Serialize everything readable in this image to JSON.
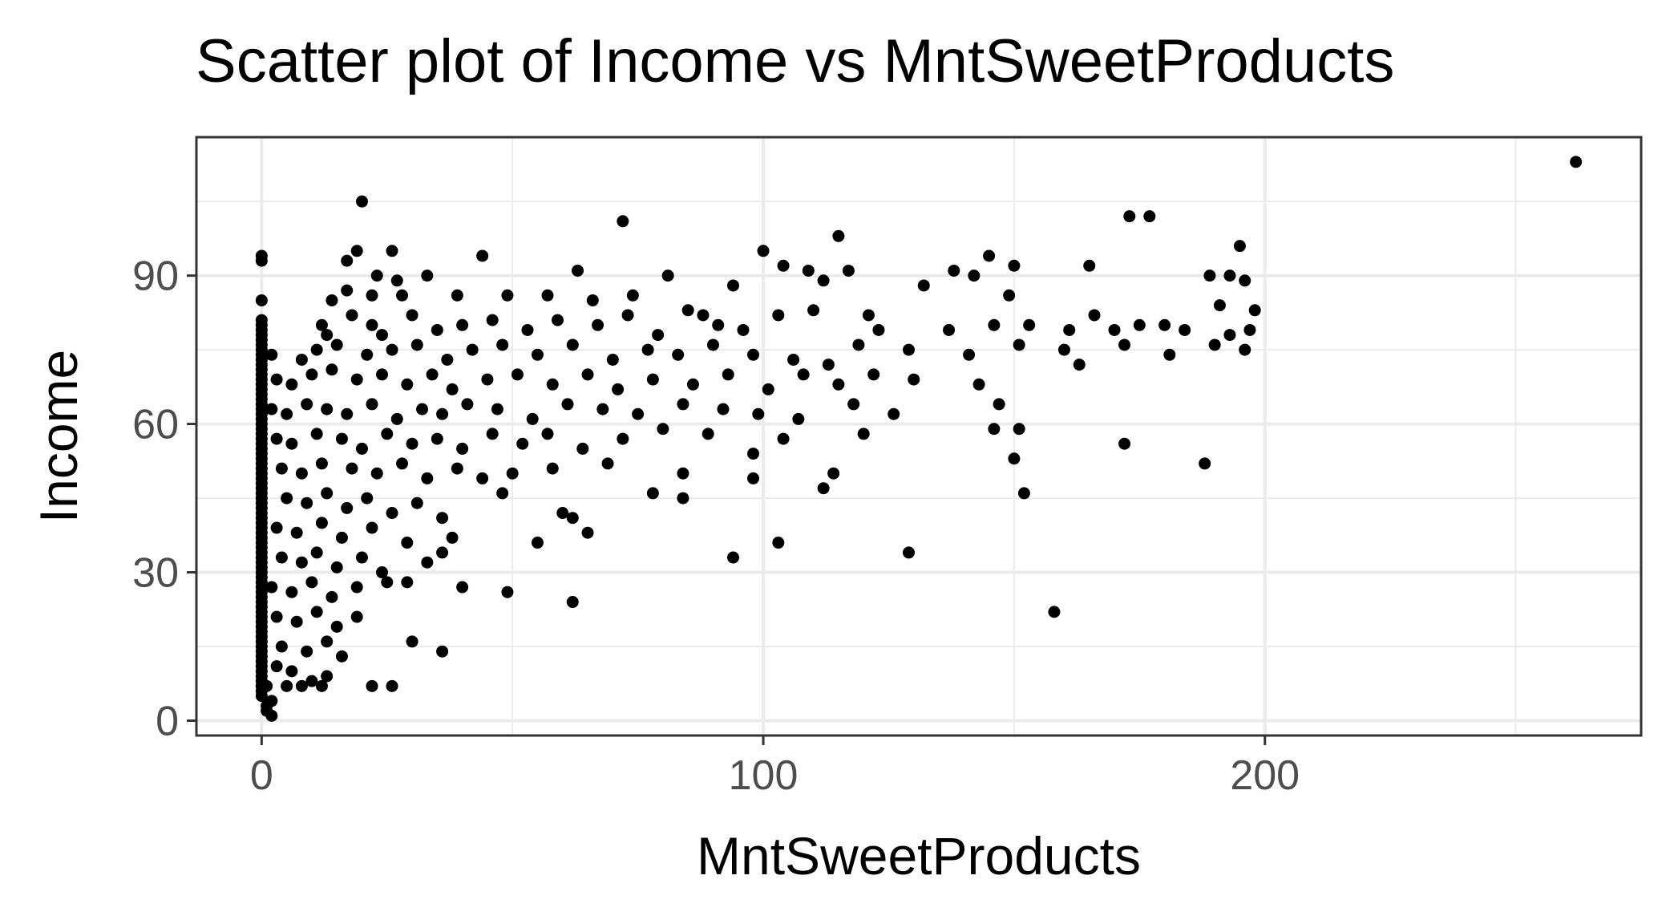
{
  "chart_data": {
    "type": "scatter",
    "title": "Scatter plot of Income vs MntSweetProducts",
    "xlabel": "MntSweetProducts",
    "ylabel": "Income",
    "xlim": [
      -13,
      275
    ],
    "ylim": [
      -3,
      118
    ],
    "x_ticks": [
      0,
      100,
      200
    ],
    "x_tick_labels": [
      "0",
      "100",
      "200"
    ],
    "y_ticks": [
      0,
      30,
      60,
      90
    ],
    "y_tick_labels": [
      "0",
      "30",
      "60",
      "90"
    ],
    "x_minor_gridlines": [
      50,
      150,
      250
    ],
    "y_minor_gridlines": [
      15,
      45,
      75,
      105
    ],
    "grid": true,
    "legend": "none",
    "point_color": "#000000",
    "series": [
      {
        "points": [
          [
            262,
            113
          ],
          [
            20,
            105
          ],
          [
            72,
            101
          ],
          [
            173,
            102
          ],
          [
            177,
            102
          ],
          [
            115,
            98
          ],
          [
            100,
            95
          ],
          [
            0,
            94
          ],
          [
            0,
            93
          ],
          [
            19,
            95
          ],
          [
            26,
            95
          ],
          [
            44,
            94
          ],
          [
            145,
            94
          ],
          [
            17,
            93
          ],
          [
            104,
            92
          ],
          [
            109,
            91
          ],
          [
            150,
            92
          ],
          [
            165,
            92
          ],
          [
            23,
            90
          ],
          [
            27,
            89
          ],
          [
            33,
            90
          ],
          [
            63,
            91
          ],
          [
            81,
            90
          ],
          [
            94,
            88
          ],
          [
            112,
            89
          ],
          [
            117,
            91
          ],
          [
            138,
            91
          ],
          [
            142,
            90
          ],
          [
            189,
            90
          ],
          [
            193,
            90
          ],
          [
            195,
            96
          ],
          [
            196,
            89
          ],
          [
            0,
            85
          ],
          [
            14,
            85
          ],
          [
            17,
            87
          ],
          [
            22,
            86
          ],
          [
            28,
            86
          ],
          [
            39,
            86
          ],
          [
            49,
            86
          ],
          [
            57,
            86
          ],
          [
            66,
            85
          ],
          [
            74,
            86
          ],
          [
            85,
            83
          ],
          [
            88,
            82
          ],
          [
            121,
            82
          ],
          [
            132,
            88
          ],
          [
            149,
            86
          ],
          [
            166,
            82
          ],
          [
            175,
            80
          ],
          [
            180,
            80
          ],
          [
            191,
            84
          ],
          [
            198,
            83
          ],
          [
            0,
            81
          ],
          [
            0,
            80
          ],
          [
            0,
            79
          ],
          [
            0,
            78
          ],
          [
            0,
            77
          ],
          [
            12,
            80
          ],
          [
            13,
            78
          ],
          [
            18,
            82
          ],
          [
            22,
            80
          ],
          [
            24,
            78
          ],
          [
            30,
            82
          ],
          [
            35,
            79
          ],
          [
            40,
            80
          ],
          [
            46,
            81
          ],
          [
            53,
            79
          ],
          [
            59,
            81
          ],
          [
            67,
            80
          ],
          [
            73,
            82
          ],
          [
            79,
            78
          ],
          [
            91,
            80
          ],
          [
            96,
            79
          ],
          [
            103,
            82
          ],
          [
            110,
            83
          ],
          [
            123,
            79
          ],
          [
            137,
            79
          ],
          [
            146,
            80
          ],
          [
            153,
            80
          ],
          [
            161,
            79
          ],
          [
            170,
            79
          ],
          [
            184,
            79
          ],
          [
            193,
            78
          ],
          [
            197,
            79
          ],
          [
            0,
            76
          ],
          [
            0,
            75
          ],
          [
            0,
            74
          ],
          [
            0,
            73
          ],
          [
            0,
            72
          ],
          [
            0,
            71
          ],
          [
            0,
            70
          ],
          [
            2,
            74
          ],
          [
            8,
            73
          ],
          [
            11,
            75
          ],
          [
            15,
            76
          ],
          [
            21,
            74
          ],
          [
            26,
            75
          ],
          [
            31,
            76
          ],
          [
            37,
            73
          ],
          [
            42,
            75
          ],
          [
            48,
            76
          ],
          [
            55,
            74
          ],
          [
            62,
            76
          ],
          [
            70,
            73
          ],
          [
            77,
            75
          ],
          [
            83,
            74
          ],
          [
            90,
            76
          ],
          [
            98,
            74
          ],
          [
            106,
            73
          ],
          [
            113,
            72
          ],
          [
            119,
            76
          ],
          [
            129,
            75
          ],
          [
            141,
            74
          ],
          [
            151,
            76
          ],
          [
            160,
            75
          ],
          [
            172,
            76
          ],
          [
            181,
            74
          ],
          [
            190,
            76
          ],
          [
            196,
            75
          ],
          [
            0,
            69
          ],
          [
            0,
            68
          ],
          [
            0,
            67
          ],
          [
            0,
            66
          ],
          [
            0,
            65
          ],
          [
            3,
            69
          ],
          [
            6,
            68
          ],
          [
            10,
            70
          ],
          [
            14,
            71
          ],
          [
            19,
            69
          ],
          [
            24,
            70
          ],
          [
            29,
            68
          ],
          [
            34,
            70
          ],
          [
            38,
            67
          ],
          [
            45,
            69
          ],
          [
            51,
            70
          ],
          [
            58,
            68
          ],
          [
            65,
            70
          ],
          [
            71,
            67
          ],
          [
            78,
            69
          ],
          [
            86,
            68
          ],
          [
            93,
            70
          ],
          [
            101,
            67
          ],
          [
            108,
            70
          ],
          [
            115,
            68
          ],
          [
            122,
            70
          ],
          [
            130,
            69
          ],
          [
            143,
            68
          ],
          [
            163,
            72
          ],
          [
            0,
            64
          ],
          [
            0,
            63
          ],
          [
            0,
            62
          ],
          [
            0,
            61
          ],
          [
            0,
            60
          ],
          [
            0,
            59
          ],
          [
            2,
            63
          ],
          [
            5,
            62
          ],
          [
            9,
            64
          ],
          [
            13,
            63
          ],
          [
            17,
            62
          ],
          [
            22,
            64
          ],
          [
            27,
            61
          ],
          [
            32,
            63
          ],
          [
            36,
            62
          ],
          [
            41,
            64
          ],
          [
            47,
            63
          ],
          [
            54,
            61
          ],
          [
            61,
            64
          ],
          [
            68,
            63
          ],
          [
            75,
            62
          ],
          [
            84,
            64
          ],
          [
            92,
            63
          ],
          [
            99,
            62
          ],
          [
            107,
            61
          ],
          [
            118,
            64
          ],
          [
            126,
            62
          ],
          [
            147,
            64
          ],
          [
            0,
            58
          ],
          [
            0,
            57
          ],
          [
            0,
            56
          ],
          [
            0,
            55
          ],
          [
            0,
            54
          ],
          [
            0,
            53
          ],
          [
            3,
            57
          ],
          [
            6,
            56
          ],
          [
            11,
            58
          ],
          [
            16,
            57
          ],
          [
            20,
            55
          ],
          [
            25,
            58
          ],
          [
            30,
            56
          ],
          [
            35,
            57
          ],
          [
            40,
            55
          ],
          [
            46,
            58
          ],
          [
            52,
            56
          ],
          [
            57,
            58
          ],
          [
            64,
            55
          ],
          [
            72,
            57
          ],
          [
            80,
            59
          ],
          [
            89,
            58
          ],
          [
            98,
            54
          ],
          [
            104,
            57
          ],
          [
            120,
            58
          ],
          [
            146,
            59
          ],
          [
            151,
            59
          ],
          [
            172,
            56
          ],
          [
            0,
            52
          ],
          [
            0,
            51
          ],
          [
            0,
            50
          ],
          [
            0,
            49
          ],
          [
            0,
            48
          ],
          [
            0,
            47
          ],
          [
            4,
            51
          ],
          [
            8,
            50
          ],
          [
            12,
            52
          ],
          [
            18,
            51
          ],
          [
            23,
            50
          ],
          [
            28,
            52
          ],
          [
            33,
            49
          ],
          [
            39,
            51
          ],
          [
            44,
            49
          ],
          [
            50,
            50
          ],
          [
            58,
            51
          ],
          [
            69,
            52
          ],
          [
            84,
            50
          ],
          [
            98,
            49
          ],
          [
            112,
            47
          ],
          [
            114,
            50
          ],
          [
            150,
            53
          ],
          [
            188,
            52
          ],
          [
            0,
            46
          ],
          [
            0,
            45
          ],
          [
            0,
            44
          ],
          [
            0,
            43
          ],
          [
            0,
            42
          ],
          [
            0,
            41
          ],
          [
            5,
            45
          ],
          [
            9,
            44
          ],
          [
            13,
            46
          ],
          [
            17,
            43
          ],
          [
            21,
            45
          ],
          [
            26,
            42
          ],
          [
            31,
            44
          ],
          [
            36,
            41
          ],
          [
            48,
            46
          ],
          [
            60,
            42
          ],
          [
            62,
            41
          ],
          [
            78,
            46
          ],
          [
            84,
            45
          ],
          [
            152,
            46
          ],
          [
            0,
            40
          ],
          [
            0,
            39
          ],
          [
            0,
            38
          ],
          [
            0,
            37
          ],
          [
            0,
            36
          ],
          [
            0,
            35
          ],
          [
            3,
            39
          ],
          [
            7,
            38
          ],
          [
            12,
            40
          ],
          [
            16,
            37
          ],
          [
            22,
            39
          ],
          [
            29,
            36
          ],
          [
            38,
            37
          ],
          [
            55,
            36
          ],
          [
            65,
            38
          ],
          [
            0,
            34
          ],
          [
            0,
            33
          ],
          [
            0,
            32
          ],
          [
            0,
            31
          ],
          [
            0,
            30
          ],
          [
            0,
            29
          ],
          [
            4,
            33
          ],
          [
            8,
            32
          ],
          [
            11,
            34
          ],
          [
            15,
            31
          ],
          [
            20,
            33
          ],
          [
            24,
            30
          ],
          [
            33,
            32
          ],
          [
            36,
            34
          ],
          [
            94,
            33
          ],
          [
            103,
            36
          ],
          [
            129,
            34
          ],
          [
            0,
            28
          ],
          [
            0,
            27
          ],
          [
            0,
            26
          ],
          [
            0,
            25
          ],
          [
            0,
            24
          ],
          [
            0,
            23
          ],
          [
            2,
            27
          ],
          [
            6,
            26
          ],
          [
            10,
            28
          ],
          [
            14,
            25
          ],
          [
            19,
            27
          ],
          [
            25,
            28
          ],
          [
            29,
            28
          ],
          [
            40,
            27
          ],
          [
            49,
            26
          ],
          [
            62,
            24
          ],
          [
            158,
            22
          ],
          [
            0,
            22
          ],
          [
            0,
            21
          ],
          [
            0,
            20
          ],
          [
            0,
            19
          ],
          [
            0,
            18
          ],
          [
            0,
            17
          ],
          [
            3,
            21
          ],
          [
            7,
            20
          ],
          [
            11,
            22
          ],
          [
            15,
            19
          ],
          [
            19,
            21
          ],
          [
            0,
            16
          ],
          [
            0,
            15
          ],
          [
            0,
            14
          ],
          [
            0,
            13
          ],
          [
            4,
            15
          ],
          [
            9,
            14
          ],
          [
            13,
            16
          ],
          [
            16,
            13
          ],
          [
            30,
            16
          ],
          [
            36,
            14
          ],
          [
            0,
            12
          ],
          [
            0,
            11
          ],
          [
            0,
            10
          ],
          [
            0,
            9
          ],
          [
            3,
            11
          ],
          [
            6,
            10
          ],
          [
            10,
            8
          ],
          [
            13,
            9
          ],
          [
            0,
            8
          ],
          [
            0,
            7
          ],
          [
            0,
            6
          ],
          [
            0,
            5
          ],
          [
            1,
            7
          ],
          [
            2,
            4
          ],
          [
            5,
            7
          ],
          [
            8,
            7
          ],
          [
            12,
            7
          ],
          [
            22,
            7
          ],
          [
            26,
            7
          ],
          [
            1,
            3
          ],
          [
            1,
            2
          ],
          [
            2,
            1
          ]
        ]
      }
    ]
  }
}
